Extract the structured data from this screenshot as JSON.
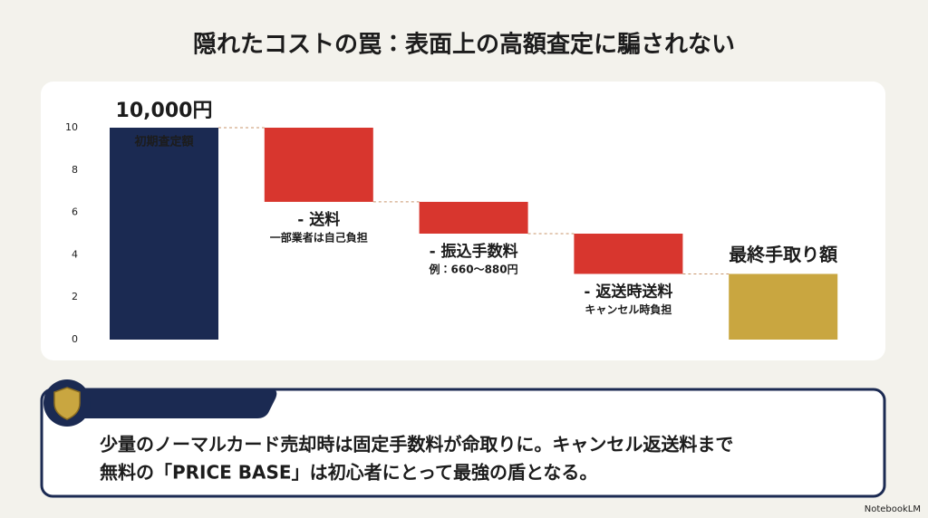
{
  "title": "隠れたコストの罠：表面上の高額査定に騙されない",
  "chart_data": {
    "type": "waterfall",
    "categories": [
      "初期査定額",
      "- 送料",
      "- 振込手数料",
      "- 返送時送料",
      "最終手取り額"
    ],
    "sublabels": [
      null,
      "一部業者は自己負担",
      "例：660〜880円",
      "キャンセル時負担",
      null
    ],
    "measure": [
      "absolute",
      "relative",
      "relative",
      "relative",
      "total"
    ],
    "values": [
      10,
      -3.5,
      -1.5,
      -1.9,
      3.1
    ],
    "value_labels": [
      "10,000円",
      null,
      null,
      null,
      null
    ],
    "colors": [
      "#1b2a52",
      "#d8362e",
      "#d8362e",
      "#d8362e",
      "#c9a640"
    ],
    "ylim": [
      0,
      10
    ],
    "yticks": [
      0,
      2,
      4,
      6,
      8,
      10
    ],
    "grid": false
  },
  "callout": {
    "lines": [
      "少量のノーマルカード売却時は固定手数料が命取りに。キャンセル返送料まで",
      "無料の「PRICE BASE」は初心者にとって最強の盾となる。"
    ]
  },
  "footer": "NotebookLM"
}
